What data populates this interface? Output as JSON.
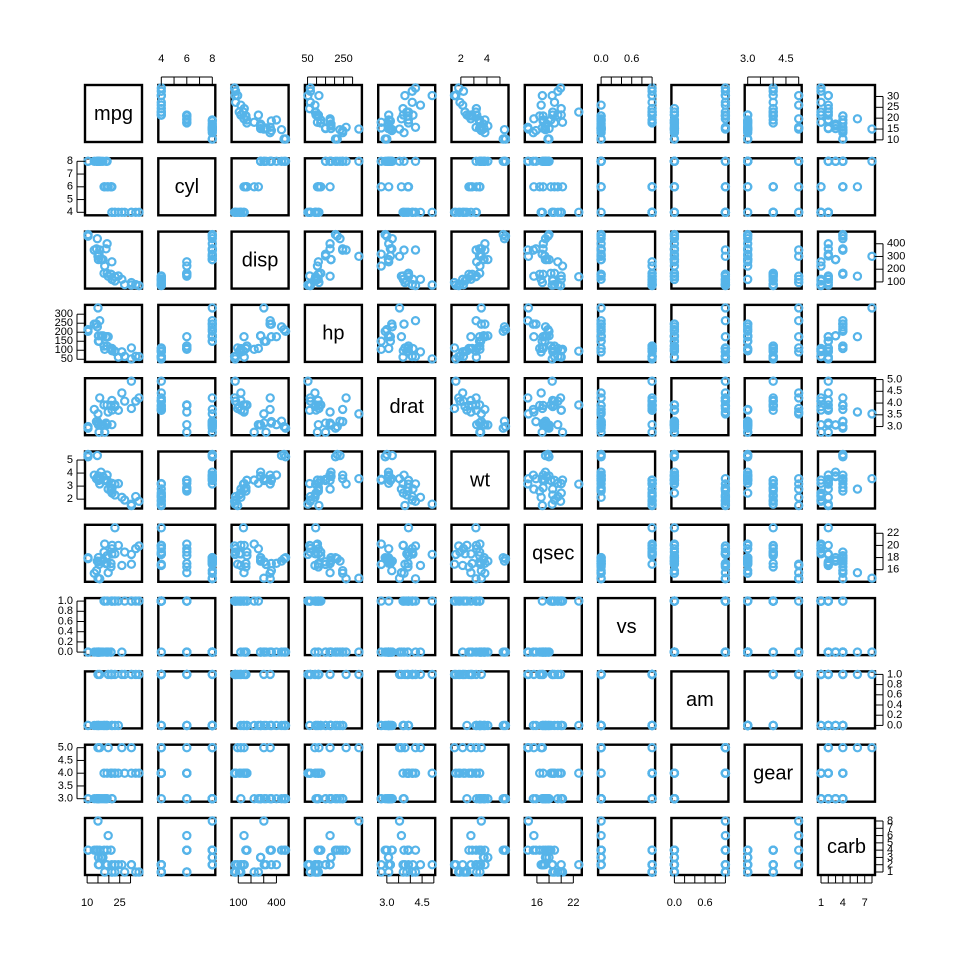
{
  "chart_data": {
    "type": "scatter",
    "variables": [
      "mpg",
      "cyl",
      "disp",
      "hp",
      "drat",
      "wt",
      "qsec",
      "vs",
      "am",
      "gear",
      "carb"
    ],
    "point_color": "#56B4E9",
    "grid": false,
    "ranges": {
      "mpg": [
        10.4,
        33.9
      ],
      "cyl": [
        4,
        8
      ],
      "disp": [
        71.1,
        472
      ],
      "hp": [
        52,
        335
      ],
      "drat": [
        2.76,
        4.93
      ],
      "wt": [
        1.513,
        5.424
      ],
      "qsec": [
        14.5,
        22.9
      ],
      "vs": [
        0,
        1
      ],
      "am": [
        0,
        1
      ],
      "gear": [
        3,
        5
      ],
      "carb": [
        1,
        8
      ]
    },
    "axis_ticks": {
      "top": {
        "cyl": [
          "4",
          "6",
          "8"
        ],
        "hp": [
          "50",
          "250"
        ],
        "wt": [
          "2",
          "4"
        ],
        "vs": [
          "0.0",
          "0.6"
        ],
        "gear": [
          "3.0",
          "4.5"
        ]
      },
      "bottom": {
        "mpg": [
          "10",
          "25"
        ],
        "disp": [
          "100",
          "400"
        ],
        "drat": [
          "3.0",
          "4.5"
        ],
        "qsec": [
          "16",
          "22"
        ],
        "am": [
          "0.0",
          "0.6"
        ],
        "carb": [
          "1",
          "4",
          "7"
        ]
      },
      "left": {
        "cyl": [
          "4",
          "5",
          "6",
          "7",
          "8"
        ],
        "hp": [
          "50",
          "100",
          "150",
          "200",
          "250",
          "300"
        ],
        "wt": [
          "2",
          "3",
          "4",
          "5"
        ],
        "vs": [
          "0.0",
          "0.2",
          "0.4",
          "0.6",
          "0.8",
          "1.0"
        ],
        "gear": [
          "3.0",
          "3.5",
          "4.0",
          "4.5",
          "5.0"
        ]
      },
      "right": {
        "mpg": [
          "10",
          "15",
          "20",
          "25",
          "30"
        ],
        "disp": [
          "100",
          "200",
          "300",
          "400"
        ],
        "drat": [
          "3.0",
          "3.5",
          "4.0",
          "4.5",
          "5.0"
        ],
        "qsec": [
          "16",
          "18",
          "20",
          "22"
        ],
        "am": [
          "0.0",
          "0.2",
          "0.4",
          "0.6",
          "0.8",
          "1.0"
        ],
        "carb": [
          "1",
          "2",
          "3",
          "4",
          "5",
          "6",
          "7",
          "8"
        ]
      }
    },
    "records": [
      [
        21.0,
        6,
        160.0,
        110,
        3.9,
        2.62,
        16.46,
        0,
        1,
        4,
        4
      ],
      [
        21.0,
        6,
        160.0,
        110,
        3.9,
        2.875,
        17.02,
        0,
        1,
        4,
        4
      ],
      [
        22.8,
        4,
        108.0,
        93,
        3.85,
        2.32,
        18.61,
        1,
        1,
        4,
        1
      ],
      [
        21.4,
        6,
        258.0,
        110,
        3.08,
        3.215,
        19.44,
        1,
        0,
        3,
        1
      ],
      [
        18.7,
        8,
        360.0,
        175,
        3.15,
        3.44,
        17.02,
        0,
        0,
        3,
        2
      ],
      [
        18.1,
        6,
        225.0,
        105,
        2.76,
        3.46,
        20.22,
        1,
        0,
        3,
        1
      ],
      [
        14.3,
        8,
        360.0,
        245,
        3.21,
        3.57,
        15.84,
        0,
        0,
        3,
        4
      ],
      [
        24.4,
        4,
        146.7,
        62,
        3.69,
        3.19,
        20.0,
        1,
        0,
        4,
        2
      ],
      [
        22.8,
        4,
        140.8,
        95,
        3.92,
        3.15,
        22.9,
        1,
        0,
        4,
        2
      ],
      [
        19.2,
        6,
        167.6,
        123,
        3.92,
        3.44,
        18.3,
        1,
        0,
        4,
        4
      ],
      [
        17.8,
        6,
        167.6,
        123,
        3.92,
        3.44,
        18.9,
        1,
        0,
        4,
        4
      ],
      [
        16.4,
        8,
        275.8,
        180,
        3.07,
        4.07,
        17.4,
        0,
        0,
        3,
        3
      ],
      [
        17.3,
        8,
        275.8,
        180,
        3.07,
        3.73,
        17.6,
        0,
        0,
        3,
        3
      ],
      [
        15.2,
        8,
        275.8,
        180,
        3.07,
        3.78,
        18.0,
        0,
        0,
        3,
        3
      ],
      [
        10.4,
        8,
        472.0,
        205,
        2.93,
        5.25,
        17.98,
        0,
        0,
        3,
        4
      ],
      [
        10.4,
        8,
        460.0,
        215,
        3.0,
        5.424,
        17.82,
        0,
        0,
        3,
        4
      ],
      [
        14.7,
        8,
        440.0,
        230,
        3.23,
        5.345,
        17.42,
        0,
        0,
        3,
        4
      ],
      [
        32.4,
        4,
        78.7,
        66,
        4.08,
        2.2,
        19.47,
        1,
        1,
        4,
        1
      ],
      [
        30.4,
        4,
        75.7,
        52,
        4.93,
        1.615,
        18.52,
        1,
        1,
        4,
        2
      ],
      [
        33.9,
        4,
        71.1,
        65,
        4.22,
        1.835,
        19.9,
        1,
        1,
        4,
        1
      ],
      [
        21.5,
        4,
        120.1,
        97,
        3.7,
        2.465,
        20.01,
        1,
        0,
        3,
        1
      ],
      [
        15.5,
        8,
        318.0,
        150,
        2.76,
        3.52,
        16.87,
        0,
        0,
        3,
        2
      ],
      [
        15.2,
        8,
        304.0,
        150,
        3.15,
        3.435,
        17.3,
        0,
        0,
        3,
        2
      ],
      [
        13.3,
        8,
        350.0,
        245,
        3.73,
        3.84,
        15.41,
        0,
        0,
        3,
        4
      ],
      [
        19.2,
        8,
        400.0,
        175,
        3.08,
        3.845,
        17.05,
        0,
        0,
        3,
        2
      ],
      [
        27.3,
        4,
        79.0,
        66,
        4.08,
        1.935,
        18.9,
        1,
        1,
        4,
        1
      ],
      [
        26.0,
        4,
        120.3,
        91,
        4.43,
        2.14,
        16.7,
        0,
        1,
        5,
        2
      ],
      [
        30.4,
        4,
        95.1,
        113,
        3.77,
        1.513,
        16.9,
        1,
        1,
        5,
        2
      ],
      [
        15.8,
        8,
        351.0,
        264,
        4.22,
        3.17,
        14.5,
        0,
        1,
        5,
        4
      ],
      [
        19.7,
        6,
        145.0,
        175,
        3.62,
        2.77,
        15.5,
        0,
        1,
        5,
        6
      ],
      [
        15.0,
        8,
        301.0,
        335,
        3.54,
        3.57,
        14.6,
        0,
        1,
        5,
        8
      ],
      [
        21.4,
        4,
        121.0,
        109,
        4.11,
        2.78,
        18.6,
        1,
        1,
        4,
        2
      ]
    ]
  }
}
